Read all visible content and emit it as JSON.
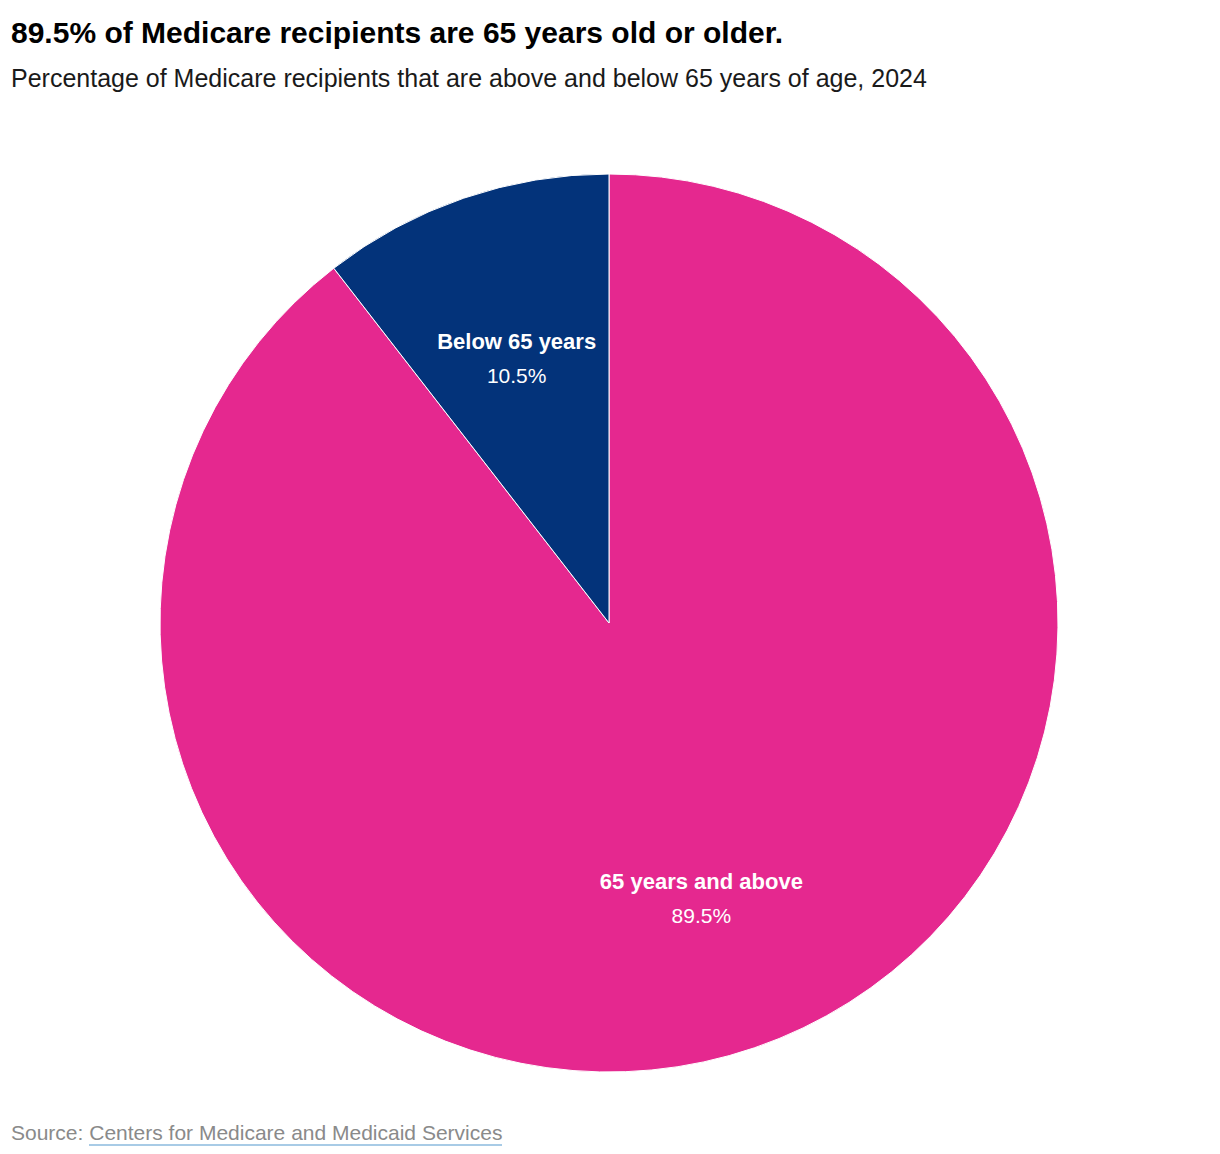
{
  "chart_data": {
    "type": "pie",
    "title": "89.5% of Medicare recipients are 65 years old or older.",
    "subtitle": "Percentage of Medicare recipients that are above and below 65 years of age, 2024",
    "categories": [
      "65 years and above",
      "Below 65 years"
    ],
    "values": [
      89.5,
      10.5
    ],
    "value_labels": [
      "89.5%",
      "10.5%"
    ],
    "colors": [
      "#e5288f",
      "#03337a"
    ],
    "data_labels": true,
    "source": {
      "label": "Source:",
      "text": "Centers for Medicare and Medicaid Services"
    }
  }
}
